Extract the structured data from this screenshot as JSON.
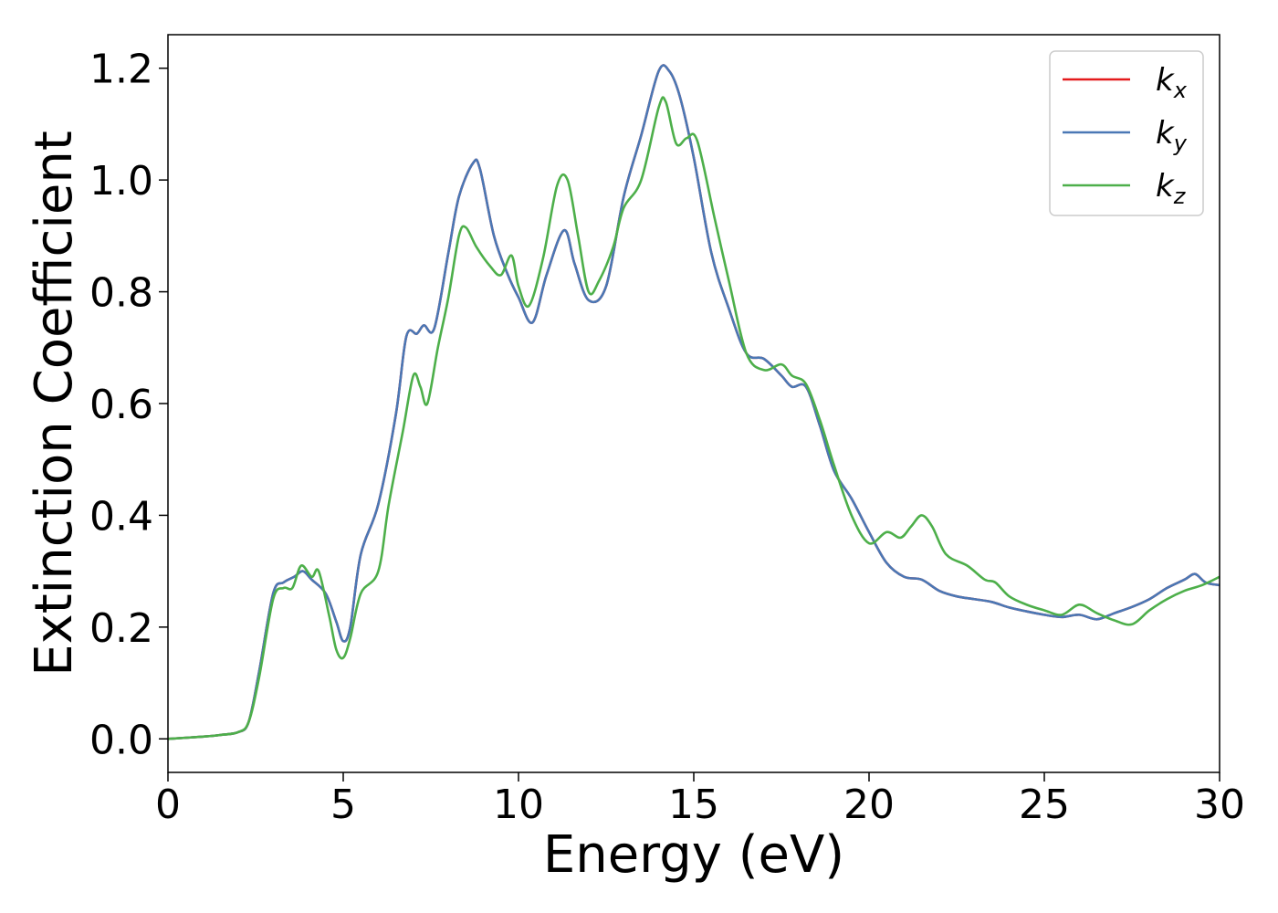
{
  "chart_data": {
    "type": "line",
    "xlabel": "Energy (eV)",
    "ylabel": "Extinction Coefficient",
    "xlim": [
      0,
      30
    ],
    "ylim": [
      -0.06,
      1.26
    ],
    "xticks": [
      0,
      5,
      10,
      15,
      20,
      25,
      30
    ],
    "xtick_labels": [
      "0",
      "5",
      "10",
      "15",
      "20",
      "25",
      "30"
    ],
    "yticks": [
      0.0,
      0.2,
      0.4,
      0.6,
      0.8,
      1.0,
      1.2
    ],
    "ytick_labels": [
      "0.0",
      "0.2",
      "0.4",
      "0.6",
      "0.8",
      "1.0",
      "1.2"
    ],
    "grid": false,
    "legend_position": "top-right",
    "series": [
      {
        "name": "k",
        "subscript": "x",
        "color": "#e41a1c",
        "x": [
          0,
          1,
          1.5,
          2,
          2.3,
          2.6,
          3,
          3.3,
          3.6,
          3.85,
          4.1,
          4.5,
          4.8,
          5.0,
          5.2,
          5.5,
          6,
          6.5,
          6.8,
          7.1,
          7.3,
          7.6,
          8,
          8.3,
          8.7,
          8.9,
          9.3,
          9.7,
          10,
          10.4,
          10.8,
          11.3,
          11.6,
          12,
          12.5,
          13,
          13.5,
          14,
          14.3,
          14.6,
          15,
          15.5,
          16,
          16.5,
          17,
          17.5,
          17.8,
          18.2,
          18.6,
          19,
          19.5,
          20,
          20.5,
          21,
          21.5,
          22,
          22.5,
          23,
          23.5,
          24,
          24.5,
          25,
          25.5,
          26,
          26.5,
          27,
          27.5,
          28,
          28.5,
          29,
          29.3,
          29.6,
          30
        ],
        "y": [
          0.0,
          0.004,
          0.007,
          0.012,
          0.03,
          0.12,
          0.26,
          0.28,
          0.29,
          0.3,
          0.285,
          0.26,
          0.21,
          0.175,
          0.2,
          0.33,
          0.42,
          0.58,
          0.72,
          0.725,
          0.74,
          0.735,
          0.87,
          0.97,
          1.03,
          1.02,
          0.9,
          0.83,
          0.79,
          0.745,
          0.83,
          0.91,
          0.85,
          0.785,
          0.81,
          0.97,
          1.08,
          1.195,
          1.195,
          1.15,
          1.04,
          0.87,
          0.77,
          0.69,
          0.68,
          0.65,
          0.63,
          0.63,
          0.56,
          0.48,
          0.43,
          0.37,
          0.315,
          0.29,
          0.285,
          0.265,
          0.255,
          0.25,
          0.245,
          0.235,
          0.228,
          0.222,
          0.218,
          0.222,
          0.214,
          0.225,
          0.236,
          0.25,
          0.27,
          0.285,
          0.295,
          0.28,
          0.275
        ]
      },
      {
        "name": "k",
        "subscript": "y",
        "color": "#4a78b5",
        "x": [
          0,
          1,
          1.5,
          2,
          2.3,
          2.6,
          3,
          3.3,
          3.6,
          3.85,
          4.1,
          4.5,
          4.8,
          5.0,
          5.2,
          5.5,
          6,
          6.5,
          6.8,
          7.1,
          7.3,
          7.6,
          8,
          8.3,
          8.7,
          8.9,
          9.3,
          9.7,
          10,
          10.4,
          10.8,
          11.3,
          11.6,
          12,
          12.5,
          13,
          13.5,
          14,
          14.3,
          14.6,
          15,
          15.5,
          16,
          16.5,
          17,
          17.5,
          17.8,
          18.2,
          18.6,
          19,
          19.5,
          20,
          20.5,
          21,
          21.5,
          22,
          22.5,
          23,
          23.5,
          24,
          24.5,
          25,
          25.5,
          26,
          26.5,
          27,
          27.5,
          28,
          28.5,
          29,
          29.3,
          29.6,
          30
        ],
        "y": [
          0.0,
          0.004,
          0.007,
          0.012,
          0.03,
          0.12,
          0.26,
          0.28,
          0.29,
          0.3,
          0.285,
          0.26,
          0.21,
          0.175,
          0.2,
          0.33,
          0.42,
          0.58,
          0.72,
          0.725,
          0.74,
          0.735,
          0.87,
          0.97,
          1.03,
          1.02,
          0.9,
          0.83,
          0.79,
          0.745,
          0.83,
          0.91,
          0.85,
          0.785,
          0.81,
          0.97,
          1.08,
          1.195,
          1.195,
          1.15,
          1.04,
          0.87,
          0.77,
          0.69,
          0.68,
          0.65,
          0.63,
          0.63,
          0.56,
          0.48,
          0.43,
          0.37,
          0.315,
          0.29,
          0.285,
          0.265,
          0.255,
          0.25,
          0.245,
          0.235,
          0.228,
          0.222,
          0.218,
          0.222,
          0.214,
          0.225,
          0.236,
          0.25,
          0.27,
          0.285,
          0.295,
          0.28,
          0.275
        ]
      },
      {
        "name": "k",
        "subscript": "z",
        "color": "#4daf4a",
        "x": [
          0,
          1,
          1.5,
          2,
          2.3,
          2.6,
          3,
          3.3,
          3.55,
          3.8,
          4.1,
          4.3,
          4.6,
          4.8,
          5.0,
          5.2,
          5.5,
          6,
          6.3,
          6.7,
          7.0,
          7.2,
          7.4,
          7.7,
          8,
          8.3,
          8.5,
          8.8,
          9.2,
          9.5,
          9.8,
          10,
          10.3,
          10.7,
          11.1,
          11.4,
          11.7,
          12,
          12.3,
          12.7,
          13,
          13.5,
          14,
          14.2,
          14.5,
          14.8,
          15.1,
          15.6,
          16,
          16.5,
          17,
          17.5,
          17.8,
          18.2,
          18.6,
          19,
          19.5,
          20,
          20.5,
          20.9,
          21.2,
          21.5,
          21.8,
          22.2,
          22.8,
          23.3,
          23.6,
          24,
          24.5,
          25,
          25.5,
          26,
          26.5,
          27,
          27.5,
          28,
          28.5,
          29,
          29.5,
          30
        ],
        "y": [
          0.0,
          0.004,
          0.007,
          0.012,
          0.03,
          0.11,
          0.25,
          0.27,
          0.27,
          0.31,
          0.29,
          0.3,
          0.22,
          0.16,
          0.145,
          0.18,
          0.26,
          0.3,
          0.42,
          0.55,
          0.65,
          0.63,
          0.6,
          0.7,
          0.79,
          0.9,
          0.915,
          0.88,
          0.845,
          0.83,
          0.865,
          0.81,
          0.775,
          0.86,
          0.99,
          1.0,
          0.9,
          0.8,
          0.82,
          0.88,
          0.95,
          1.0,
          1.13,
          1.14,
          1.065,
          1.075,
          1.07,
          0.93,
          0.82,
          0.69,
          0.66,
          0.67,
          0.65,
          0.635,
          0.57,
          0.49,
          0.4,
          0.35,
          0.37,
          0.36,
          0.38,
          0.4,
          0.38,
          0.33,
          0.31,
          0.285,
          0.28,
          0.255,
          0.24,
          0.23,
          0.222,
          0.24,
          0.225,
          0.212,
          0.205,
          0.23,
          0.25,
          0.265,
          0.275,
          0.29
        ]
      }
    ]
  }
}
